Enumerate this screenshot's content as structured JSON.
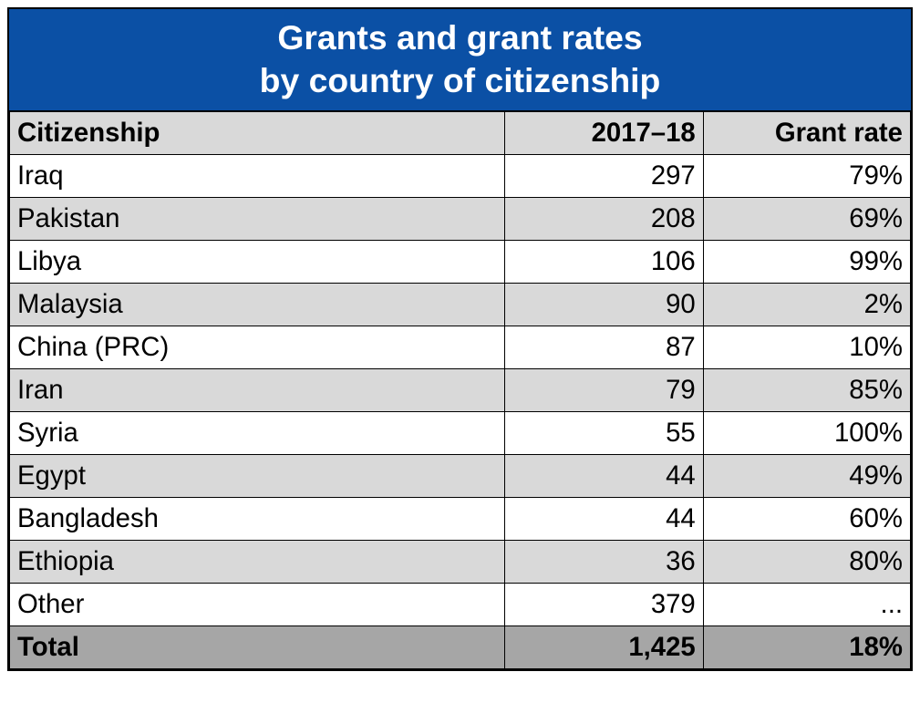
{
  "table": {
    "type": "table",
    "title_line1": "Grants and grant rates",
    "title_line2": "by country of citizenship",
    "title_bg": "#0b50a5",
    "title_color": "#ffffff",
    "title_fontsize_pt": 28,
    "header_bg": "#d9d9d9",
    "row_bg_white": "#ffffff",
    "row_bg_gray": "#d9d9d9",
    "total_bg": "#a6a6a6",
    "border_color": "#000000",
    "body_fontsize_pt": 22,
    "columns": [
      {
        "key": "citizenship",
        "label": "Citizenship",
        "align": "left",
        "width_pct": 55
      },
      {
        "key": "year",
        "label": "2017–18",
        "align": "right",
        "width_pct": 22
      },
      {
        "key": "rate",
        "label": "Grant rate",
        "align": "right",
        "width_pct": 23
      }
    ],
    "rows": [
      {
        "citizenship": "Iraq",
        "year": "297",
        "rate": "79%",
        "bg": "#ffffff"
      },
      {
        "citizenship": "Pakistan",
        "year": "208",
        "rate": "69%",
        "bg": "#d9d9d9"
      },
      {
        "citizenship": "Libya",
        "year": "106",
        "rate": "99%",
        "bg": "#ffffff"
      },
      {
        "citizenship": "Malaysia",
        "year": "90",
        "rate": "2%",
        "bg": "#d9d9d9"
      },
      {
        "citizenship": "China (PRC)",
        "year": "87",
        "rate": "10%",
        "bg": "#ffffff"
      },
      {
        "citizenship": "Iran",
        "year": "79",
        "rate": "85%",
        "bg": "#d9d9d9"
      },
      {
        "citizenship": "Syria",
        "year": "55",
        "rate": "100%",
        "bg": "#ffffff"
      },
      {
        "citizenship": "Egypt",
        "year": "44",
        "rate": "49%",
        "bg": "#d9d9d9"
      },
      {
        "citizenship": "Bangladesh",
        "year": "44",
        "rate": "60%",
        "bg": "#ffffff"
      },
      {
        "citizenship": "Ethiopia",
        "year": "36",
        "rate": "80%",
        "bg": "#d9d9d9"
      },
      {
        "citizenship": "Other",
        "year": "379",
        "rate": "...",
        "bg": "#ffffff"
      }
    ],
    "total": {
      "citizenship": "Total",
      "year": "1,425",
      "rate": "18%"
    }
  }
}
